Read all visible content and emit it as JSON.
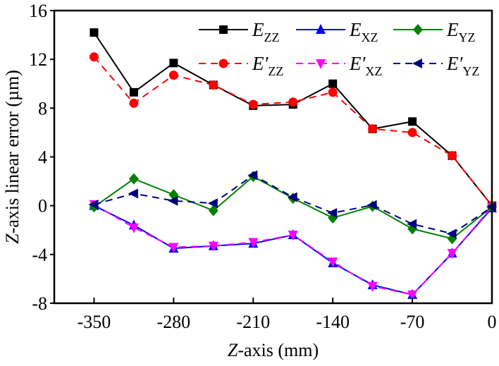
{
  "chart_data": {
    "type": "line",
    "title": "",
    "xlabel": "Z-axis (mm)",
    "xlabel_italic_part": "Z",
    "xlabel_rest": "-axis (mm)",
    "ylabel": "Z-axis linear error (µm)",
    "ylabel_italic_part": "Z",
    "ylabel_rest": "-axis linear error (µm)",
    "xlim": [
      -385,
      0
    ],
    "ylim": [
      -8,
      16
    ],
    "xticks": [
      -350,
      -280,
      -210,
      -140,
      -70,
      0
    ],
    "xtick_labels": [
      "-350",
      "-280",
      "-210",
      "-140",
      "-70",
      "0"
    ],
    "yticks": [
      -8,
      -4,
      0,
      4,
      8,
      12,
      16
    ],
    "ytick_labels": [
      "-8",
      "-4",
      "0",
      "4",
      "8",
      "12",
      "16"
    ],
    "grid": false,
    "legend_position": "top-right",
    "x": [
      -350,
      -315,
      -280,
      -245,
      -210,
      -175,
      -140,
      -105,
      -70,
      -35,
      0
    ],
    "series": [
      {
        "name": "E_ZZ",
        "label_main": "E",
        "label_prime": "",
        "label_sub": "ZZ",
        "color": "#000000",
        "dashed": false,
        "marker": "square",
        "values": [
          14.2,
          9.3,
          11.7,
          9.9,
          8.2,
          8.3,
          10.0,
          6.3,
          6.9,
          4.1,
          0.0
        ]
      },
      {
        "name": "E_XZ",
        "label_main": "E",
        "label_prime": "",
        "label_sub": "XZ",
        "color": "#0000ff",
        "dashed": false,
        "marker": "triangle-up",
        "values": [
          0.0,
          -1.6,
          -3.5,
          -3.3,
          -3.1,
          -2.4,
          -4.7,
          -6.5,
          -7.3,
          -3.9,
          -0.2
        ]
      },
      {
        "name": "E_YZ",
        "label_main": "E",
        "label_prime": "",
        "label_sub": "YZ",
        "color": "#008000",
        "dashed": false,
        "marker": "diamond",
        "values": [
          -0.1,
          2.2,
          0.9,
          -0.4,
          2.4,
          0.6,
          -1.0,
          -0.05,
          -1.9,
          -2.7,
          -0.1
        ]
      },
      {
        "name": "E'_ZZ",
        "label_main": "E",
        "label_prime": "′",
        "label_sub": "ZZ",
        "color": "#ff0000",
        "dashed": true,
        "marker": "circle",
        "values": [
          12.2,
          8.4,
          10.7,
          9.9,
          8.3,
          8.5,
          9.3,
          6.3,
          6.0,
          4.1,
          0.0
        ]
      },
      {
        "name": "E'_XZ",
        "label_main": "E",
        "label_prime": "′",
        "label_sub": "XZ",
        "color": "#ff00ff",
        "dashed": true,
        "marker": "triangle-down",
        "values": [
          0.1,
          -1.8,
          -3.4,
          -3.3,
          -3.0,
          -2.4,
          -4.6,
          -6.6,
          -7.3,
          -3.9,
          -0.1
        ]
      },
      {
        "name": "E'_YZ",
        "label_main": "E",
        "label_prime": "′",
        "label_sub": "YZ",
        "color": "#000080",
        "dashed": true,
        "marker": "triangle-left",
        "values": [
          0.1,
          1.0,
          0.4,
          0.2,
          2.5,
          0.7,
          -0.6,
          0.05,
          -1.5,
          -2.3,
          -0.1
        ]
      }
    ]
  }
}
